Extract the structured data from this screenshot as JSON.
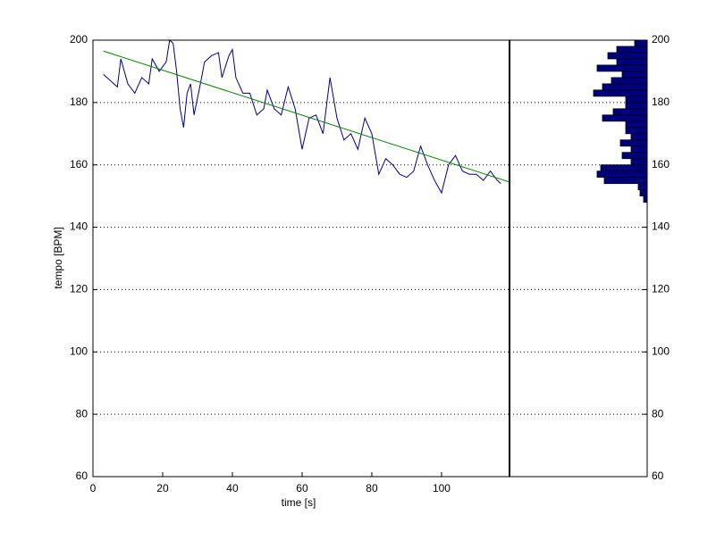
{
  "chart_data": [
    {
      "type": "line",
      "xlabel": "time [s]",
      "ylabel": "tempo [BPM]",
      "xlim": [
        0,
        119.5
      ],
      "ylim": [
        60,
        200
      ],
      "xticks": [
        0,
        20,
        40,
        60,
        80,
        100
      ],
      "yticks": [
        60,
        80,
        100,
        120,
        140,
        160,
        180,
        200
      ],
      "grid": "y",
      "series": [
        {
          "color": "#00007f",
          "x": [
            3,
            5,
            7,
            8,
            10,
            12,
            14,
            16,
            17,
            19,
            21,
            22,
            23,
            24,
            25,
            26,
            27,
            28,
            29,
            31,
            32,
            34,
            36,
            37,
            39,
            40,
            41,
            43,
            45,
            47,
            49,
            50,
            52,
            54,
            56,
            58,
            60,
            62,
            64,
            66,
            68,
            70,
            72,
            74,
            76,
            78,
            80,
            82,
            84,
            86,
            88,
            90,
            92,
            94,
            96,
            98,
            100,
            102,
            104,
            106,
            108,
            110,
            112,
            114,
            116,
            117
          ],
          "values": [
            189,
            187,
            185,
            194,
            186,
            183,
            188,
            186,
            194,
            190,
            193,
            200,
            199,
            190,
            178,
            172,
            183,
            186,
            176,
            187,
            193,
            195,
            196,
            188,
            195,
            197,
            188,
            183,
            183,
            176,
            178,
            184,
            178,
            176,
            185,
            178,
            165,
            175,
            176,
            170,
            188,
            175,
            168,
            170,
            165,
            175,
            170,
            157,
            162,
            160,
            157,
            156,
            158,
            166,
            160,
            155,
            151,
            160,
            163,
            158,
            157,
            157,
            155,
            158,
            155,
            154
          ]
        },
        {
          "color": "#008000",
          "x": [
            3,
            119.5
          ],
          "values": [
            196.5,
            154.5
          ]
        }
      ]
    },
    {
      "type": "histogram",
      "xlim": [
        77,
        0
      ],
      "ylim": [
        60,
        200
      ],
      "yticks": [
        60,
        80,
        100,
        120,
        140,
        160,
        180,
        200
      ],
      "grid": "y",
      "color": "#00007f",
      "bins": [
        148,
        150,
        152,
        154,
        156,
        158,
        160,
        162,
        164,
        166,
        168,
        170,
        172,
        174,
        176,
        178,
        180,
        182,
        184,
        186,
        188,
        190,
        192,
        194,
        196,
        198,
        200
      ],
      "values": [
        2,
        4,
        5,
        24,
        28,
        26,
        9,
        14,
        9,
        15,
        9,
        12,
        12,
        25,
        19,
        12,
        12,
        30,
        25,
        20,
        14,
        28,
        17,
        22,
        17,
        7
      ]
    }
  ]
}
